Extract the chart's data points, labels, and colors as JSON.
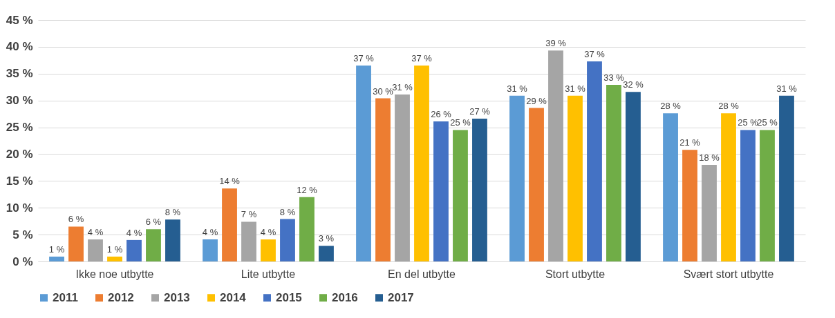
{
  "chart_data": {
    "type": "bar",
    "categories": [
      "Ikke noe utbytte",
      "Lite utbytte",
      "En del utbytte",
      "Stort utbytte",
      "Svært stort utbytte"
    ],
    "series": [
      {
        "name": "2011",
        "color": "#5b9bd5",
        "values": [
          0.9,
          4.1,
          36.5,
          30.9,
          27.6
        ],
        "value_labels": [
          "1 %",
          "4 %",
          "37 %",
          "31 %",
          "28 %"
        ]
      },
      {
        "name": "2012",
        "color": "#ed7d31",
        "values": [
          6.5,
          13.6,
          30.4,
          28.6,
          20.8
        ],
        "value_labels": [
          "6 %",
          "14 %",
          "30 %",
          "29 %",
          "21 %"
        ]
      },
      {
        "name": "2013",
        "color": "#a5a5a5",
        "values": [
          4.1,
          7.4,
          31.1,
          39.3,
          18.0
        ],
        "value_labels": [
          "4 %",
          "7 %",
          "31 %",
          "39 %",
          "18 %"
        ]
      },
      {
        "name": "2014",
        "color": "#ffc000",
        "values": [
          0.9,
          4.1,
          36.5,
          30.9,
          27.6
        ],
        "value_labels": [
          "1 %",
          "4 %",
          "37 %",
          "31 %",
          "28 %"
        ]
      },
      {
        "name": "2015",
        "color": "#4472c4",
        "values": [
          4.0,
          7.9,
          26.1,
          37.3,
          24.5
        ],
        "value_labels": [
          "4 %",
          "8 %",
          "26 %",
          "37 %",
          "25 %"
        ]
      },
      {
        "name": "2016",
        "color": "#70ad47",
        "values": [
          6.0,
          12.0,
          24.5,
          32.9,
          24.5
        ],
        "value_labels": [
          "6 %",
          "12 %",
          "25 %",
          "33 %",
          "25 %"
        ]
      },
      {
        "name": "2017",
        "color": "#255e91",
        "values": [
          7.8,
          2.9,
          26.6,
          31.6,
          30.9
        ],
        "value_labels": [
          "8 %",
          "3 %",
          "27 %",
          "32 %",
          "31 %"
        ]
      }
    ],
    "ylim": [
      0,
      45
    ],
    "yticks": [
      {
        "value": 0,
        "label": "0 %"
      },
      {
        "value": 5,
        "label": "5 %"
      },
      {
        "value": 10,
        "label": "10 %"
      },
      {
        "value": 15,
        "label": "15 %"
      },
      {
        "value": 20,
        "label": "20 %"
      },
      {
        "value": 25,
        "label": "25 %"
      },
      {
        "value": 30,
        "label": "30 %"
      },
      {
        "value": 35,
        "label": "35 %"
      },
      {
        "value": 40,
        "label": "40 %"
      },
      {
        "value": 45,
        "label": "45 %"
      }
    ],
    "grid": "y",
    "legend": "bottom"
  }
}
